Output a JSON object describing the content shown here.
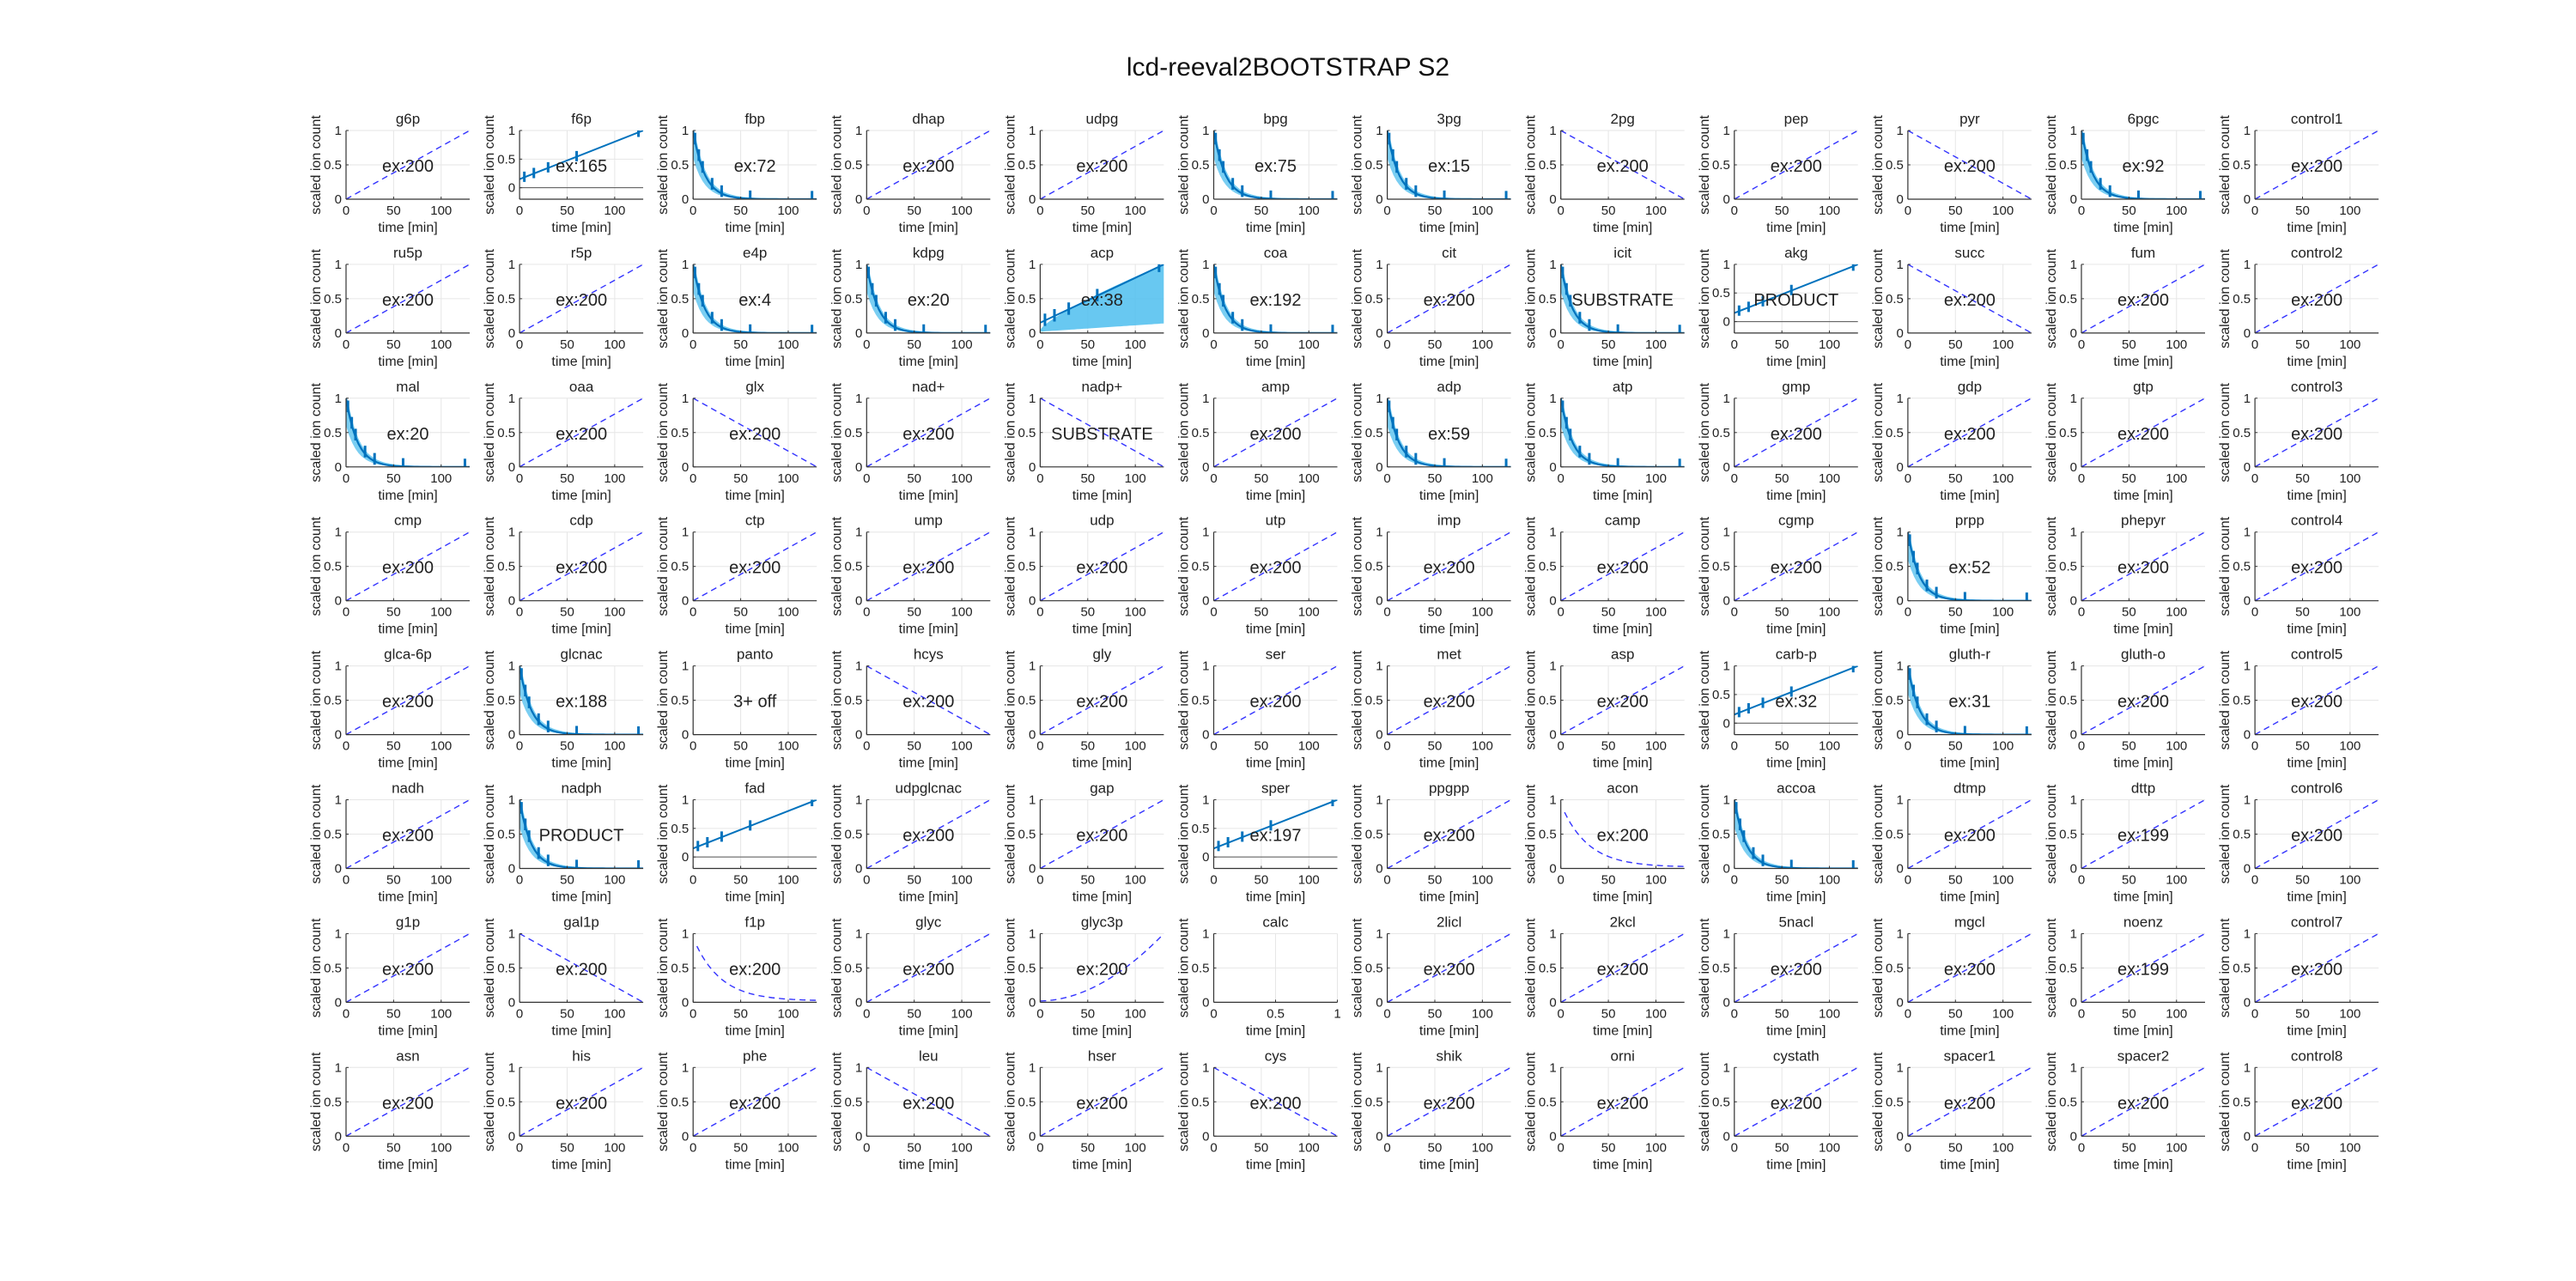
{
  "figure": {
    "title": "lcd-reeval2BOOTSTRAP S2"
  },
  "axes_defaults": {
    "xlabel": "time [min]",
    "ylabel": "scaled ion count",
    "x_ticks": [
      "0",
      "50",
      "100"
    ],
    "y_ticks": [
      "0",
      "0.5",
      "1"
    ],
    "xlim": [
      0,
      130
    ],
    "ylim": [
      0,
      1
    ]
  },
  "colors": {
    "data": "#0072BD",
    "band": "#4DBEEE",
    "fit": "#3333ff",
    "axis": "#333333",
    "grid": "#e6e6e6"
  },
  "chart_data": [
    {
      "name": "g6p",
      "label": "ex:200",
      "curve": "up"
    },
    {
      "name": "f6p",
      "label": "ex:165",
      "curve": "data-rise",
      "ylim": [
        -0.2,
        1
      ],
      "y_ticks": [
        "0",
        "0.5",
        "1"
      ]
    },
    {
      "name": "fbp",
      "label": "ex:72",
      "curve": "data-decay"
    },
    {
      "name": "dhap",
      "label": "ex:200",
      "curve": "up"
    },
    {
      "name": "udpg",
      "label": "ex:200",
      "curve": "up"
    },
    {
      "name": "bpg",
      "label": "ex:75",
      "curve": "data-decay"
    },
    {
      "name": "3pg",
      "label": "ex:15",
      "curve": "data-decay"
    },
    {
      "name": "2pg",
      "label": "ex:200",
      "curve": "down"
    },
    {
      "name": "pep",
      "label": "ex:200",
      "curve": "up"
    },
    {
      "name": "pyr",
      "label": "ex:200",
      "curve": "down"
    },
    {
      "name": "6pgc",
      "label": "ex:92",
      "curve": "data-decay"
    },
    {
      "name": "control1",
      "label": "ex:200",
      "curve": "up"
    },
    {
      "name": "ru5p",
      "label": "ex:200",
      "curve": "up"
    },
    {
      "name": "r5p",
      "label": "ex:200",
      "curve": "up"
    },
    {
      "name": "e4p",
      "label": "ex:4",
      "curve": "data-decay"
    },
    {
      "name": "kdpg",
      "label": "ex:20",
      "curve": "data-decay"
    },
    {
      "name": "acp",
      "label": "ex:38",
      "curve": "data-rise-band"
    },
    {
      "name": "coa",
      "label": "ex:192",
      "curve": "data-decay"
    },
    {
      "name": "cit",
      "label": "ex:200",
      "curve": "up"
    },
    {
      "name": "icit",
      "label": "SUBSTRATE",
      "curve": "data-decay"
    },
    {
      "name": "akg",
      "label": "PRODUCT",
      "curve": "data-rise",
      "ylim": [
        -0.2,
        1
      ],
      "y_ticks": [
        "0",
        "0.5",
        "1"
      ]
    },
    {
      "name": "succ",
      "label": "ex:200",
      "curve": "down"
    },
    {
      "name": "fum",
      "label": "ex:200",
      "curve": "up"
    },
    {
      "name": "control2",
      "label": "ex:200",
      "curve": "up"
    },
    {
      "name": "mal",
      "label": "ex:20",
      "curve": "data-decay"
    },
    {
      "name": "oaa",
      "label": "ex:200",
      "curve": "up"
    },
    {
      "name": "glx",
      "label": "ex:200",
      "curve": "down"
    },
    {
      "name": "nad+",
      "label": "ex:200",
      "curve": "up"
    },
    {
      "name": "nadp+",
      "label": "SUBSTRATE",
      "curve": "down"
    },
    {
      "name": "amp",
      "label": "ex:200",
      "curve": "up"
    },
    {
      "name": "adp",
      "label": "ex:59",
      "curve": "data-decay"
    },
    {
      "name": "atp",
      "label": "",
      "curve": "data-decay"
    },
    {
      "name": "gmp",
      "label": "ex:200",
      "curve": "up"
    },
    {
      "name": "gdp",
      "label": "ex:200",
      "curve": "up"
    },
    {
      "name": "gtp",
      "label": "ex:200",
      "curve": "up"
    },
    {
      "name": "control3",
      "label": "ex:200",
      "curve": "up"
    },
    {
      "name": "cmp",
      "label": "ex:200",
      "curve": "up"
    },
    {
      "name": "cdp",
      "label": "ex:200",
      "curve": "up"
    },
    {
      "name": "ctp",
      "label": "ex:200",
      "curve": "up"
    },
    {
      "name": "ump",
      "label": "ex:200",
      "curve": "up"
    },
    {
      "name": "udp",
      "label": "ex:200",
      "curve": "up"
    },
    {
      "name": "utp",
      "label": "ex:200",
      "curve": "up"
    },
    {
      "name": "imp",
      "label": "ex:200",
      "curve": "up"
    },
    {
      "name": "camp",
      "label": "ex:200",
      "curve": "up"
    },
    {
      "name": "cgmp",
      "label": "ex:200",
      "curve": "up"
    },
    {
      "name": "prpp",
      "label": "ex:52",
      "curve": "data-decay"
    },
    {
      "name": "phepyr",
      "label": "ex:200",
      "curve": "up"
    },
    {
      "name": "control4",
      "label": "ex:200",
      "curve": "up"
    },
    {
      "name": "glca-6p",
      "label": "ex:200",
      "curve": "up"
    },
    {
      "name": "glcnac",
      "label": "ex:188",
      "curve": "data-decay"
    },
    {
      "name": "panto",
      "label": "3+ off",
      "curve": "none"
    },
    {
      "name": "hcys",
      "label": "ex:200",
      "curve": "down"
    },
    {
      "name": "gly",
      "label": "ex:200",
      "curve": "up"
    },
    {
      "name": "ser",
      "label": "ex:200",
      "curve": "up"
    },
    {
      "name": "met",
      "label": "ex:200",
      "curve": "up"
    },
    {
      "name": "asp",
      "label": "ex:200",
      "curve": "up"
    },
    {
      "name": "carb-p",
      "label": "ex:32",
      "curve": "data-rise",
      "ylim": [
        -0.2,
        1
      ],
      "y_ticks": [
        "0",
        "0.5",
        "1"
      ]
    },
    {
      "name": "gluth-r",
      "label": "ex:31",
      "curve": "data-decay"
    },
    {
      "name": "gluth-o",
      "label": "ex:200",
      "curve": "up"
    },
    {
      "name": "control5",
      "label": "ex:200",
      "curve": "up"
    },
    {
      "name": "nadh",
      "label": "ex:200",
      "curve": "up"
    },
    {
      "name": "nadph",
      "label": "PRODUCT",
      "curve": "data-decay"
    },
    {
      "name": "fad",
      "label": "",
      "curve": "data-rise",
      "ylim": [
        -0.2,
        1
      ],
      "y_ticks": [
        "0",
        "0.5",
        "1"
      ]
    },
    {
      "name": "udpglcnac",
      "label": "ex:200",
      "curve": "up"
    },
    {
      "name": "gap",
      "label": "ex:200",
      "curve": "up"
    },
    {
      "name": "sper",
      "label": "ex:197",
      "curve": "data-rise",
      "ylim": [
        -0.2,
        1
      ],
      "y_ticks": [
        "0",
        "0.5",
        "1"
      ]
    },
    {
      "name": "ppgpp",
      "label": "ex:200",
      "curve": "up"
    },
    {
      "name": "acon",
      "label": "ex:200",
      "curve": "decay-dashed"
    },
    {
      "name": "accoa",
      "label": "",
      "curve": "data-decay"
    },
    {
      "name": "dtmp",
      "label": "ex:200",
      "curve": "up"
    },
    {
      "name": "dttp",
      "label": "ex:199",
      "curve": "up"
    },
    {
      "name": "control6",
      "label": "ex:200",
      "curve": "up"
    },
    {
      "name": "g1p",
      "label": "ex:200",
      "curve": "up"
    },
    {
      "name": "gal1p",
      "label": "ex:200",
      "curve": "down"
    },
    {
      "name": "f1p",
      "label": "ex:200",
      "curve": "decay-dashed"
    },
    {
      "name": "glyc",
      "label": "ex:200",
      "curve": "up"
    },
    {
      "name": "glyc3p",
      "label": "ex:200",
      "curve": "convex-up"
    },
    {
      "name": "calc",
      "label": "",
      "curve": "empty",
      "xlim": [
        0,
        1
      ],
      "x_ticks": [
        "0",
        "0.5",
        "1"
      ]
    },
    {
      "name": "2licl",
      "label": "ex:200",
      "curve": "up"
    },
    {
      "name": "2kcl",
      "label": "ex:200",
      "curve": "up"
    },
    {
      "name": "5nacl",
      "label": "ex:200",
      "curve": "up"
    },
    {
      "name": "mgcl",
      "label": "ex:200",
      "curve": "up"
    },
    {
      "name": "noenz",
      "label": "ex:199",
      "curve": "up"
    },
    {
      "name": "control7",
      "label": "ex:200",
      "curve": "up"
    },
    {
      "name": "asn",
      "label": "ex:200",
      "curve": "up"
    },
    {
      "name": "his",
      "label": "ex:200",
      "curve": "up"
    },
    {
      "name": "phe",
      "label": "ex:200",
      "curve": "up"
    },
    {
      "name": "leu",
      "label": "ex:200",
      "curve": "down"
    },
    {
      "name": "hser",
      "label": "ex:200",
      "curve": "up"
    },
    {
      "name": "cys",
      "label": "ex:200",
      "curve": "down"
    },
    {
      "name": "shik",
      "label": "ex:200",
      "curve": "up"
    },
    {
      "name": "orni",
      "label": "ex:200",
      "curve": "up"
    },
    {
      "name": "cystath",
      "label": "ex:200",
      "curve": "up"
    },
    {
      "name": "spacer1",
      "label": "ex:200",
      "curve": "up"
    },
    {
      "name": "spacer2",
      "label": "ex:200",
      "curve": "up"
    },
    {
      "name": "control8",
      "label": "ex:200",
      "curve": "up"
    }
  ]
}
